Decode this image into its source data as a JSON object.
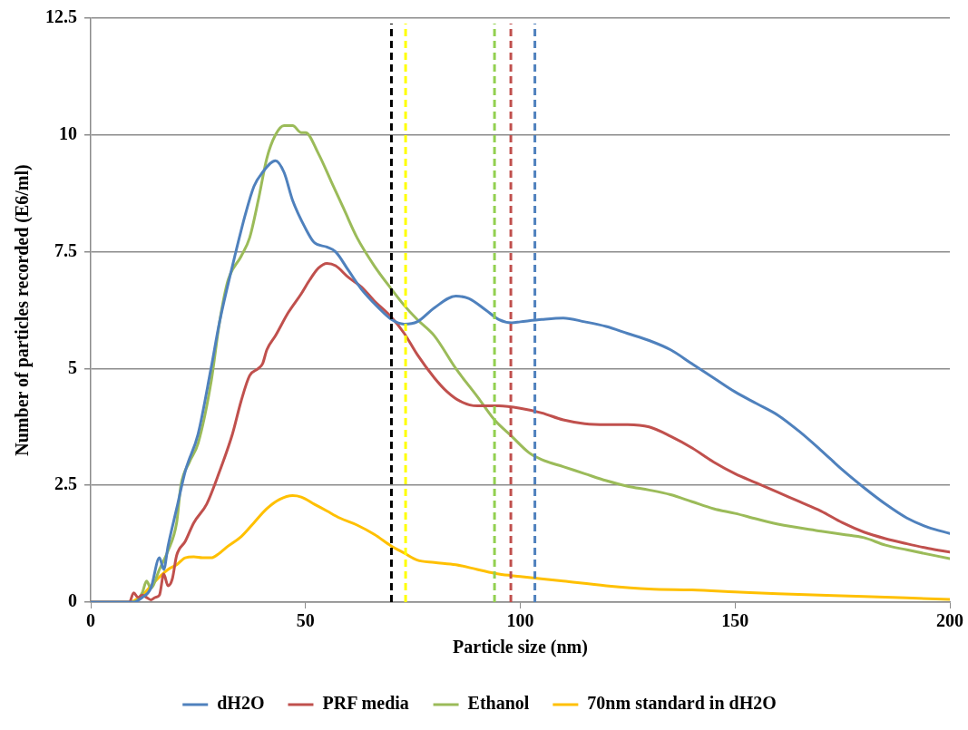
{
  "chart_data": {
    "type": "line",
    "xlabel": "Particle size (nm)",
    "ylabel": "Number of particles recorded (E6/ml)",
    "xlim": [
      0,
      200
    ],
    "xticks": [
      0,
      50,
      100,
      150,
      200
    ],
    "ylim": [
      0,
      12.5
    ],
    "yticks": [
      0,
      2.5,
      5,
      7.5,
      10,
      12.5
    ],
    "grid": "y",
    "legend": "bottom",
    "marker": "none",
    "line_style": "solid",
    "series": [
      {
        "name": "dH2O",
        "color": "#4f81bd",
        "x": [
          0,
          8,
          10,
          12,
          14,
          16,
          17,
          18,
          20,
          22,
          25,
          28,
          30,
          33,
          36,
          38,
          40,
          43,
          45,
          47,
          50,
          52,
          55,
          57,
          60,
          63,
          67,
          70,
          73,
          76,
          80,
          85,
          88,
          92,
          95,
          98,
          100,
          105,
          110,
          115,
          120,
          125,
          130,
          135,
          140,
          145,
          150,
          155,
          160,
          165,
          170,
          175,
          180,
          185,
          190,
          195,
          200
        ],
        "values": [
          0,
          0,
          0,
          0.1,
          0.3,
          0.95,
          0.7,
          1.2,
          2.0,
          2.8,
          3.6,
          5.0,
          6.0,
          7.2,
          8.3,
          8.9,
          9.2,
          9.45,
          9.2,
          8.6,
          8.0,
          7.7,
          7.6,
          7.5,
          7.1,
          6.7,
          6.3,
          6.05,
          5.95,
          6.0,
          6.3,
          6.55,
          6.5,
          6.25,
          6.05,
          5.98,
          6.0,
          6.05,
          6.08,
          6.0,
          5.9,
          5.75,
          5.6,
          5.4,
          5.1,
          4.8,
          4.5,
          4.25,
          4.0,
          3.65,
          3.25,
          2.83,
          2.45,
          2.1,
          1.8,
          1.6,
          1.47
        ]
      },
      {
        "name": "PRF media",
        "color": "#c0504d",
        "x": [
          0,
          9,
          10,
          11,
          12,
          13,
          14,
          15,
          16,
          17,
          18,
          19,
          20,
          22,
          24,
          27,
          30,
          33,
          35,
          37,
          39,
          40,
          41,
          43,
          46,
          49,
          51,
          53,
          55,
          57,
          60,
          63,
          66,
          70,
          73,
          76,
          80,
          83,
          86,
          90,
          95,
          100,
          105,
          110,
          115,
          120,
          125,
          130,
          135,
          140,
          145,
          150,
          155,
          160,
          165,
          170,
          175,
          180,
          185,
          190,
          195,
          200
        ],
        "values": [
          0,
          0,
          0.2,
          0.1,
          0.15,
          0.1,
          0.05,
          0.1,
          0.15,
          0.6,
          0.35,
          0.5,
          1.0,
          1.3,
          1.7,
          2.1,
          2.8,
          3.6,
          4.3,
          4.85,
          5.0,
          5.1,
          5.4,
          5.7,
          6.2,
          6.6,
          6.9,
          7.15,
          7.25,
          7.2,
          6.95,
          6.75,
          6.45,
          6.1,
          5.75,
          5.3,
          4.8,
          4.5,
          4.3,
          4.2,
          4.2,
          4.15,
          4.05,
          3.9,
          3.82,
          3.8,
          3.8,
          3.75,
          3.55,
          3.3,
          3.0,
          2.75,
          2.55,
          2.35,
          2.15,
          1.95,
          1.7,
          1.5,
          1.36,
          1.25,
          1.15,
          1.07
        ]
      },
      {
        "name": "Ethanol",
        "color": "#9bbb59",
        "x": [
          0,
          10,
          12,
          13,
          14,
          16,
          18,
          20,
          21,
          23,
          25,
          28,
          30,
          32,
          35,
          37,
          39,
          41,
          43,
          45,
          47,
          49,
          50,
          53,
          56,
          59,
          62,
          66,
          70,
          73,
          76,
          80,
          85,
          90,
          94,
          98,
          102,
          105,
          110,
          115,
          120,
          125,
          130,
          135,
          140,
          145,
          150,
          155,
          160,
          170,
          175,
          180,
          185,
          190,
          200
        ],
        "values": [
          0,
          0,
          0.2,
          0.45,
          0.3,
          0.7,
          1.1,
          1.7,
          2.5,
          3.0,
          3.4,
          4.7,
          6.0,
          6.9,
          7.4,
          7.8,
          8.6,
          9.5,
          10.0,
          10.2,
          10.2,
          10.05,
          10.05,
          9.6,
          9.0,
          8.4,
          7.8,
          7.2,
          6.7,
          6.35,
          6.05,
          5.7,
          5.0,
          4.4,
          3.9,
          3.55,
          3.2,
          3.05,
          2.9,
          2.75,
          2.6,
          2.48,
          2.4,
          2.3,
          2.15,
          2.0,
          1.9,
          1.78,
          1.67,
          1.52,
          1.45,
          1.38,
          1.22,
          1.12,
          0.93
        ]
      },
      {
        "name": "70nm standard in dH2O",
        "color": "#ffc000",
        "x": [
          0,
          9,
          12,
          15,
          18,
          20,
          22,
          24,
          26,
          28,
          30,
          32,
          35,
          38,
          41,
          44,
          47,
          49,
          52,
          55,
          58,
          62,
          66,
          70,
          73,
          76,
          80,
          85,
          90,
          95,
          100,
          110,
          120,
          130,
          140,
          150,
          160,
          180,
          200
        ],
        "values": [
          0,
          0,
          0.15,
          0.45,
          0.7,
          0.8,
          0.95,
          0.97,
          0.95,
          0.95,
          1.05,
          1.2,
          1.4,
          1.7,
          2.0,
          2.2,
          2.28,
          2.25,
          2.1,
          1.95,
          1.8,
          1.65,
          1.45,
          1.2,
          1.05,
          0.9,
          0.85,
          0.8,
          0.7,
          0.6,
          0.55,
          0.45,
          0.35,
          0.28,
          0.26,
          0.22,
          0.18,
          0.12,
          0.06
        ]
      }
    ],
    "ref_lines": [
      {
        "axis": "x",
        "value": 70,
        "color": "#000000",
        "line_style": "dashed"
      },
      {
        "axis": "x",
        "value": 73.3,
        "color": "#ffff00",
        "line_style": "dashed"
      },
      {
        "axis": "x",
        "value": 94,
        "color": "#92d050",
        "line_style": "dashed"
      },
      {
        "axis": "x",
        "value": 97.8,
        "color": "#c0504d",
        "line_style": "dashed"
      },
      {
        "axis": "x",
        "value": 103.4,
        "color": "#4f81bd",
        "line_style": "dashed"
      }
    ]
  }
}
